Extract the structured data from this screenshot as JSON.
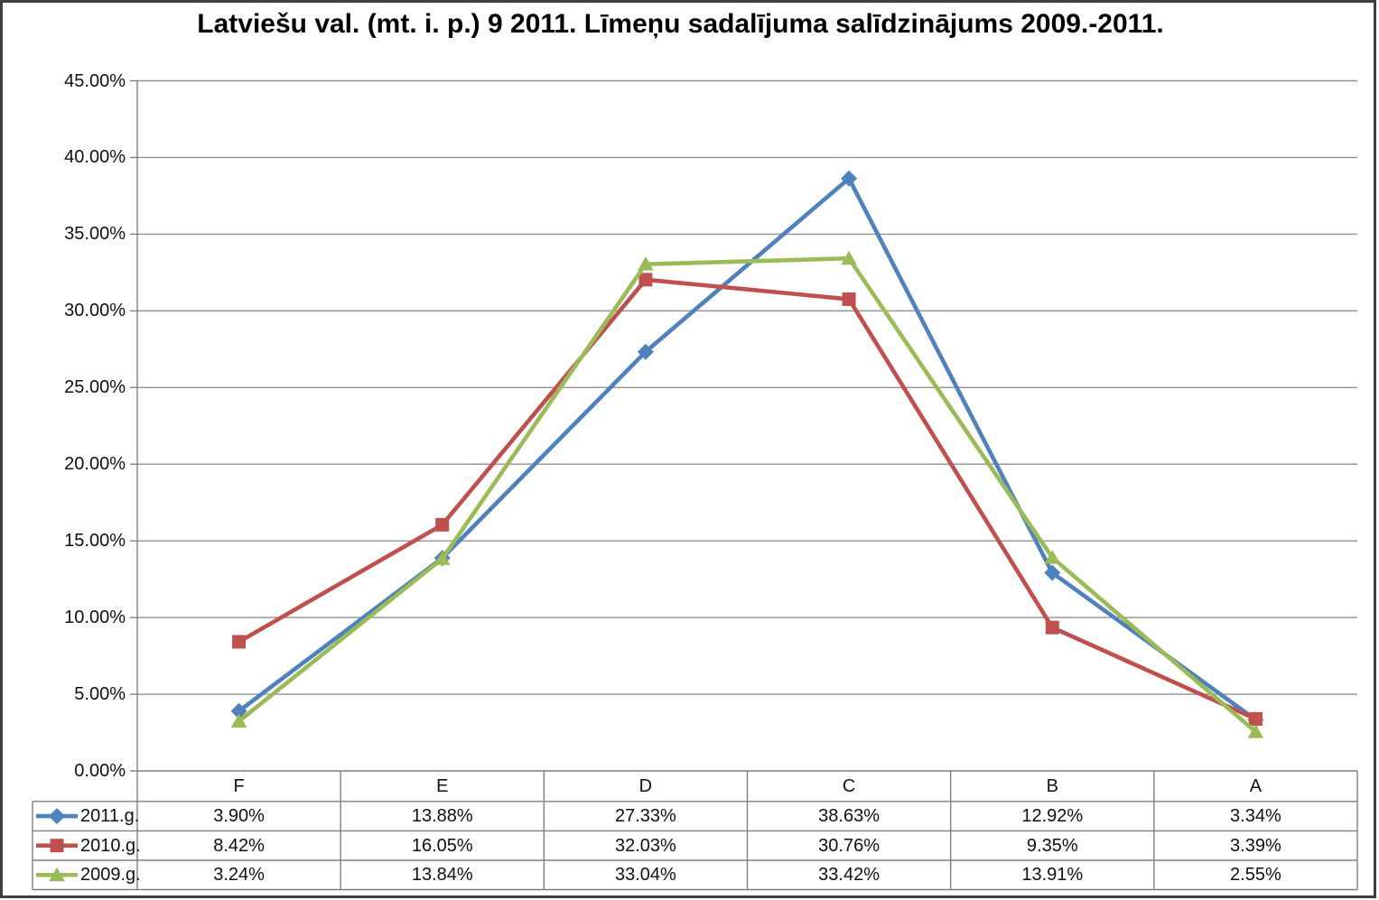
{
  "chart_data": {
    "type": "line",
    "title": "Latviešu val. (mt. i. p.) 9 2011. Līmeņu sadalījuma salīdzinājums 2009.-2011.",
    "categories": [
      "F",
      "E",
      "D",
      "C",
      "B",
      "A"
    ],
    "series": [
      {
        "name": "2011.g.",
        "marker": "diamond",
        "color": "#4F81BD",
        "values": [
          3.9,
          13.88,
          27.33,
          38.63,
          12.92,
          3.34
        ],
        "labels": [
          "3.90%",
          "13.88%",
          "27.33%",
          "38.63%",
          "12.92%",
          "3.34%"
        ]
      },
      {
        "name": "2010.g.",
        "marker": "square",
        "color": "#C0504D",
        "values": [
          8.42,
          16.05,
          32.03,
          30.76,
          9.35,
          3.39
        ],
        "labels": [
          "8.42%",
          "16.05%",
          "32.03%",
          "30.76%",
          "9.35%",
          "3.39%"
        ]
      },
      {
        "name": "2009.g.",
        "marker": "triangle",
        "color": "#9BBB59",
        "values": [
          3.24,
          13.84,
          33.04,
          33.42,
          13.91,
          2.55
        ],
        "labels": [
          "3.24%",
          "13.84%",
          "33.04%",
          "33.42%",
          "13.91%",
          "2.55%"
        ]
      }
    ],
    "y_axis": {
      "min": 0,
      "max": 45,
      "step": 5,
      "format": "percent",
      "tick_labels": [
        "45.00%",
        "40.00%",
        "35.00%",
        "30.00%",
        "25.00%",
        "20.00%",
        "15.00%",
        "10.00%",
        "5.00%",
        "0.00%"
      ]
    },
    "grid": true,
    "legend_position": "data-table-left",
    "data_table": true
  },
  "colors": {
    "background": "#FFFFFF",
    "gridline": "#919191",
    "axis": "#808080",
    "table_border": "#808080",
    "frame": "#3F3F3F",
    "text": "#111111"
  }
}
